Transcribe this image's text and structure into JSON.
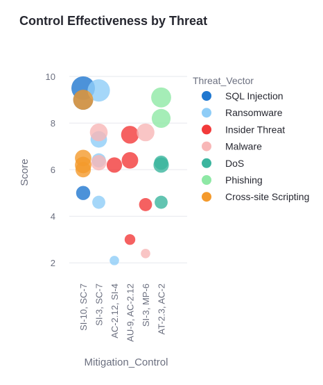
{
  "chart_data": {
    "type": "scatter",
    "title": "Control Effectiveness by Threat",
    "xlabel": "Mitigation_Control",
    "ylabel": "Score",
    "categories": [
      "SI-10, SC-7",
      "SI-3, SC-7",
      "AC-2.12, SI-4",
      "AU-9, AC-2.12",
      "SI-3, MP-6",
      "AT-2.3, AC-2"
    ],
    "ylim": [
      1.5,
      10.3
    ],
    "yticks": [
      2,
      4,
      6,
      8,
      10
    ],
    "grid": true,
    "legend": {
      "title": "Threat_Vector",
      "position": "right"
    },
    "series": [
      {
        "name": "SQL Injection",
        "color": "#1f77d0",
        "points": [
          {
            "x": "SI-10, SC-7",
            "y": 9.5,
            "size": 1.0
          },
          {
            "x": "SI-10, SC-7",
            "y": 9.0,
            "size": 0.85
          },
          {
            "x": "SI-10, SC-7",
            "y": 5.0,
            "size": 0.6
          }
        ]
      },
      {
        "name": "Ransomware",
        "color": "#8fcdf7",
        "points": [
          {
            "x": "SI-3, SC-7",
            "y": 9.4,
            "size": 0.95
          },
          {
            "x": "SI-3, SC-7",
            "y": 7.3,
            "size": 0.7
          },
          {
            "x": "SI-3, SC-7",
            "y": 6.4,
            "size": 0.6
          },
          {
            "x": "SI-3, SC-7",
            "y": 4.6,
            "size": 0.55
          },
          {
            "x": "AC-2.12, SI-4",
            "y": 2.1,
            "size": 0.4
          }
        ]
      },
      {
        "name": "Insider Threat",
        "color": "#f23a3a",
        "points": [
          {
            "x": "AC-2.12, SI-4",
            "y": 6.2,
            "size": 0.65
          },
          {
            "x": "AU-9, AC-2.12",
            "y": 7.5,
            "size": 0.75
          },
          {
            "x": "AU-9, AC-2.12",
            "y": 6.4,
            "size": 0.7
          },
          {
            "x": "AU-9, AC-2.12",
            "y": 3.0,
            "size": 0.45
          },
          {
            "x": "SI-3, MP-6",
            "y": 4.5,
            "size": 0.55
          }
        ]
      },
      {
        "name": "Malware",
        "color": "#f8b7b7",
        "points": [
          {
            "x": "SI-3, SC-7",
            "y": 7.6,
            "size": 0.75
          },
          {
            "x": "SI-3, SC-7",
            "y": 6.3,
            "size": 0.65
          },
          {
            "x": "SI-3, MP-6",
            "y": 7.6,
            "size": 0.75
          },
          {
            "x": "SI-3, MP-6",
            "y": 2.4,
            "size": 0.4
          }
        ]
      },
      {
        "name": "DoS",
        "color": "#3bb59e",
        "points": [
          {
            "x": "AT-2.3, AC-2",
            "y": 6.2,
            "size": 0.65
          },
          {
            "x": "AT-2.3, AC-2",
            "y": 6.3,
            "size": 0.6
          },
          {
            "x": "AT-2.3, AC-2",
            "y": 4.6,
            "size": 0.55
          }
        ]
      },
      {
        "name": "Phishing",
        "color": "#8ee8a5",
        "points": [
          {
            "x": "AT-2.3, AC-2",
            "y": 9.1,
            "size": 0.85
          },
          {
            "x": "AT-2.3, AC-2",
            "y": 8.2,
            "size": 0.8
          }
        ]
      },
      {
        "name": "Cross-site Scripting",
        "color": "#f49a2c",
        "points": [
          {
            "x": "SI-10, SC-7",
            "y": 9.0,
            "size": 0.85
          },
          {
            "x": "SI-10, SC-7",
            "y": 6.5,
            "size": 0.7
          },
          {
            "x": "SI-10, SC-7",
            "y": 6.2,
            "size": 0.7
          },
          {
            "x": "SI-10, SC-7",
            "y": 6.0,
            "size": 0.65
          }
        ]
      }
    ]
  }
}
